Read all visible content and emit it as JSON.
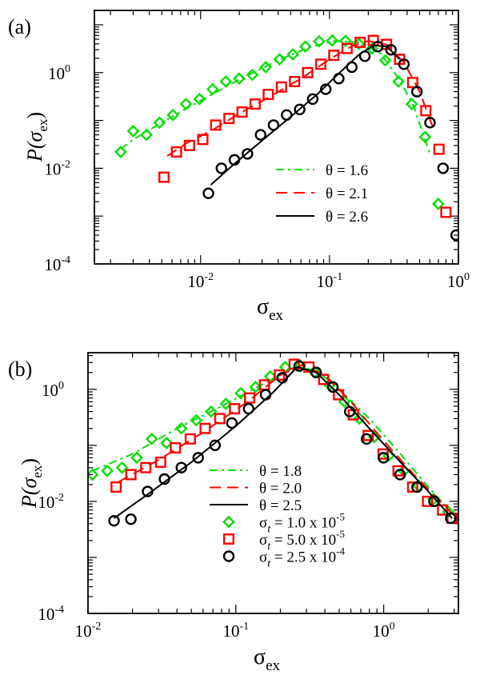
{
  "figure": {
    "colors": {
      "green": "#00e000",
      "red": "#ff0000",
      "black": "#000000"
    }
  },
  "chart_data": [
    {
      "type": "scatter",
      "panel_label": "(a)",
      "xscale": "log",
      "yscale": "log",
      "xlim": [
        0.0015,
        1.0
      ],
      "ylim": [
        0.0001,
        20
      ],
      "xlabel": "σ",
      "xlabel_sub": "ex",
      "ylabel_pre": "P(σ",
      "ylabel_sub": "ex",
      "ylabel_post": ")",
      "x_tick_labels": [
        {
          "value": 0.01,
          "base": "10",
          "exp": "-2"
        },
        {
          "value": 0.1,
          "base": "10",
          "exp": "-1"
        },
        {
          "value": 1,
          "base": "10",
          "exp": "0"
        }
      ],
      "y_tick_labels": [
        {
          "value": 0.0001,
          "base": "10",
          "exp": "-4"
        },
        {
          "value": 0.01,
          "base": "10",
          "exp": "-2"
        },
        {
          "value": 1,
          "base": "10",
          "exp": "0"
        }
      ],
      "legend": {
        "position": "center-right",
        "entries": [
          {
            "series": 0,
            "label": "θ = 1.6"
          },
          {
            "series": 1,
            "label": "θ = 2.1"
          },
          {
            "series": 2,
            "label": "θ = 2.6"
          }
        ]
      },
      "series": [
        {
          "name": "θ = 1.6",
          "marker": "diamond",
          "color": "#00e000",
          "line": "dashdot",
          "x": [
            0.0024,
            0.003,
            0.0038,
            0.0048,
            0.0061,
            0.0077,
            0.0098,
            0.0124,
            0.0157,
            0.0199,
            0.0252,
            0.032,
            0.041,
            0.052,
            0.065,
            0.083,
            0.105,
            0.133,
            0.169,
            0.214,
            0.271,
            0.343,
            0.435,
            0.551,
            0.698
          ],
          "y": [
            0.022,
            0.06,
            0.05,
            0.09,
            0.13,
            0.22,
            0.28,
            0.45,
            0.65,
            0.75,
            0.9,
            1.3,
            1.9,
            2.4,
            3.5,
            4.5,
            4.7,
            4.6,
            4.0,
            3.2,
            1.8,
            0.65,
            0.22,
            0.045,
            0.0018
          ],
          "fit_x": [
            0.0024,
            0.003,
            0.005,
            0.01,
            0.02,
            0.04,
            0.07,
            0.11,
            0.17,
            0.25,
            0.35,
            0.45,
            0.6
          ],
          "fit_y": [
            0.025,
            0.04,
            0.09,
            0.26,
            0.72,
            1.8,
            3.4,
            4.6,
            4.3,
            2.5,
            0.7,
            0.2,
            0.02
          ]
        },
        {
          "name": "θ = 2.1",
          "marker": "square",
          "color": "#ff0000",
          "line": "dashed",
          "x": [
            0.0052,
            0.0065,
            0.0082,
            0.0104,
            0.0131,
            0.0166,
            0.021,
            0.0265,
            0.0335,
            0.0424,
            0.0536,
            0.0677,
            0.0856,
            0.108,
            0.137,
            0.173,
            0.219,
            0.277,
            0.35,
            0.442,
            0.559,
            0.707,
            0.8
          ],
          "y": [
            0.0065,
            0.022,
            0.03,
            0.04,
            0.08,
            0.11,
            0.15,
            0.22,
            0.35,
            0.5,
            0.65,
            1.0,
            1.5,
            2.3,
            3.2,
            4.3,
            4.7,
            3.9,
            1.9,
            0.62,
            0.16,
            0.025,
            0.0012
          ],
          "fit_x": [
            0.0055,
            0.008,
            0.012,
            0.02,
            0.035,
            0.06,
            0.1,
            0.15,
            0.2,
            0.28,
            0.38,
            0.5,
            0.65
          ],
          "fit_y": [
            0.018,
            0.035,
            0.06,
            0.14,
            0.32,
            0.75,
            1.9,
            3.6,
            4.6,
            3.8,
            1.6,
            0.4,
            0.06
          ]
        },
        {
          "name": "θ = 2.6",
          "marker": "circle",
          "color": "#000000",
          "line": "solid",
          "x": [
            0.0115,
            0.0145,
            0.0183,
            0.0231,
            0.0292,
            0.0368,
            0.0465,
            0.0587,
            0.0741,
            0.0935,
            0.118,
            0.149,
            0.188,
            0.237,
            0.3,
            0.378,
            0.477,
            0.602,
            0.76,
            0.96
          ],
          "y": [
            0.003,
            0.01,
            0.015,
            0.02,
            0.05,
            0.08,
            0.13,
            0.17,
            0.28,
            0.45,
            0.75,
            1.3,
            2.2,
            3.5,
            3.0,
            1.5,
            0.4,
            0.09,
            0.01,
            0.0004
          ],
          "fit_x": [
            0.012,
            0.018,
            0.03,
            0.05,
            0.08,
            0.12,
            0.17,
            0.22,
            0.28,
            0.35
          ],
          "fit_y": [
            0.0045,
            0.012,
            0.038,
            0.12,
            0.35,
            1.0,
            2.4,
            3.7,
            3.5,
            1.9
          ]
        }
      ]
    },
    {
      "type": "scatter",
      "panel_label": "(b)",
      "xscale": "log",
      "yscale": "log",
      "xlim": [
        0.01,
        3.2
      ],
      "ylim": [
        0.0001,
        4.5
      ],
      "xlabel": "σ",
      "xlabel_sub": "ex",
      "ylabel_pre": "P(σ",
      "ylabel_sub": "ex",
      "ylabel_post": ")",
      "x_tick_labels": [
        {
          "value": 0.01,
          "base": "10",
          "exp": "-2"
        },
        {
          "value": 0.1,
          "base": "10",
          "exp": "-1"
        },
        {
          "value": 1,
          "base": "10",
          "exp": "0"
        }
      ],
      "y_tick_labels": [
        {
          "value": 0.0001,
          "base": "10",
          "exp": "-4"
        },
        {
          "value": 0.01,
          "base": "10",
          "exp": "-2"
        },
        {
          "value": 1,
          "base": "10",
          "exp": "0"
        }
      ],
      "legend": {
        "position": "center-right",
        "entries": [
          {
            "series": 0,
            "label": "θ = 1.8",
            "kind": "line"
          },
          {
            "series": 1,
            "label": "θ = 2.0",
            "kind": "line"
          },
          {
            "series": 2,
            "label": "θ = 2.5",
            "kind": "line"
          },
          {
            "series": 0,
            "kind": "marker",
            "sigma": "σ",
            "sub": "t",
            "text": " = 1.0 x 10",
            "exp": "-5"
          },
          {
            "series": 1,
            "kind": "marker",
            "sigma": "σ",
            "sub": "t",
            "text": " = 5.0 x 10",
            "exp": "-5"
          },
          {
            "series": 2,
            "kind": "marker",
            "sigma": "σ",
            "sub": "t",
            "text": " = 2.5 x 10",
            "exp": "-4"
          }
        ]
      },
      "series": [
        {
          "name": "θ = 1.8",
          "marker": "diamond",
          "color": "#00e000",
          "line": "dashdot",
          "x": [
            0.0107,
            0.0135,
            0.017,
            0.0214,
            0.027,
            0.034,
            0.0428,
            0.054,
            0.068,
            0.0856,
            0.108,
            0.136,
            0.171,
            0.216,
            0.272,
            0.342,
            0.431,
            0.543,
            0.684,
            0.862,
            1.08,
            1.37,
            1.72,
            2.17,
            2.73
          ],
          "y": [
            0.03,
            0.035,
            0.04,
            0.06,
            0.13,
            0.11,
            0.2,
            0.28,
            0.4,
            0.55,
            0.85,
            1.1,
            1.7,
            2.5,
            2.6,
            2.0,
            1.2,
            0.6,
            0.3,
            0.14,
            0.065,
            0.035,
            0.019,
            0.011,
            0.0065
          ],
          "fit_x": [
            0.0107,
            0.02,
            0.04,
            0.08,
            0.15,
            0.25,
            0.35,
            0.5,
            0.8,
            1.3,
            2.0,
            2.8
          ],
          "fit_y": [
            0.035,
            0.07,
            0.2,
            0.5,
            1.2,
            2.5,
            2.2,
            1.0,
            0.3,
            0.07,
            0.018,
            0.007
          ]
        },
        {
          "name": "θ = 2.0",
          "marker": "square",
          "color": "#ff0000",
          "line": "dashed",
          "x": [
            0.0155,
            0.0195,
            0.0246,
            0.031,
            0.039,
            0.0492,
            0.062,
            0.078,
            0.098,
            0.124,
            0.156,
            0.197,
            0.248,
            0.312,
            0.393,
            0.495,
            0.624,
            0.786,
            0.99,
            1.25,
            1.57,
            1.98,
            2.5,
            2.9
          ],
          "y": [
            0.018,
            0.03,
            0.04,
            0.05,
            0.09,
            0.13,
            0.2,
            0.3,
            0.45,
            0.7,
            1.2,
            1.8,
            2.8,
            2.5,
            1.5,
            0.8,
            0.35,
            0.15,
            0.07,
            0.035,
            0.018,
            0.01,
            0.007,
            0.005
          ],
          "fit_x": [
            0.016,
            0.03,
            0.06,
            0.12,
            0.2,
            0.28,
            0.4,
            0.6,
            1.0,
            1.6,
            2.5,
            2.9
          ],
          "fit_y": [
            0.022,
            0.055,
            0.17,
            0.6,
            1.8,
            2.7,
            1.8,
            0.6,
            0.12,
            0.03,
            0.009,
            0.006
          ]
        },
        {
          "name": "θ = 2.5",
          "marker": "circle",
          "color": "#000000",
          "line": "solid",
          "x": [
            0.015,
            0.0195,
            0.0253,
            0.0329,
            0.0428,
            0.0556,
            0.0723,
            0.094,
            0.122,
            0.159,
            0.206,
            0.268,
            0.349,
            0.453,
            0.589,
            0.766,
            0.996,
            1.29,
            1.68,
            2.19,
            2.84
          ],
          "y": [
            0.0045,
            0.0048,
            0.015,
            0.025,
            0.04,
            0.06,
            0.1,
            0.25,
            0.45,
            0.8,
            1.6,
            2.6,
            2.0,
            1.1,
            0.4,
            0.13,
            0.06,
            0.03,
            0.018,
            0.01,
            0.005
          ],
          "fit_x": [
            0.015,
            0.025,
            0.05,
            0.1,
            0.18,
            0.26,
            0.35,
            0.5,
            0.8,
            1.3,
            2.0,
            2.9
          ],
          "fit_y": [
            0.005,
            0.013,
            0.05,
            0.22,
            0.9,
            2.5,
            2.0,
            0.8,
            0.2,
            0.05,
            0.015,
            0.005
          ]
        }
      ]
    }
  ]
}
